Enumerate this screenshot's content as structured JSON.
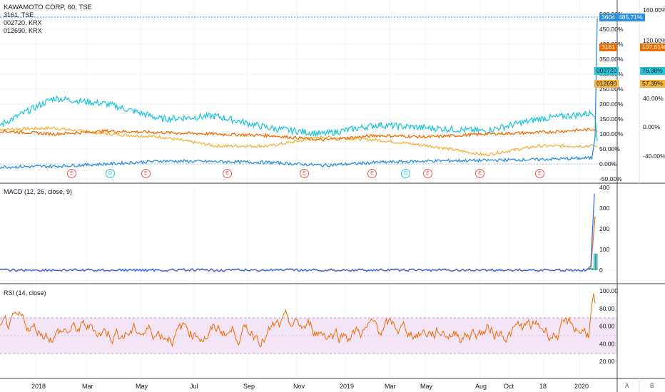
{
  "main_legend": {
    "title": "KAWAMOTO CORP, 60, TSE",
    "symbols": [
      "3161, TSE",
      "002720, KRX",
      "012690, KRX"
    ]
  },
  "colors": {
    "kawamoto": "#2d8ee0",
    "s3161": "#ef6c00",
    "s002720": "#26c6da",
    "s012690": "#f2b33d",
    "macd": "#2962ff",
    "signal": "#ef6c00",
    "hist_up": "#26a69a",
    "hist_dn": "#ef5350",
    "rsi": "#ef6c00",
    "rsi_band": "#f3e5f5",
    "earnings": "#ef5350",
    "dividend": "#26c6da"
  },
  "price_tags": [
    {
      "label": "3604",
      "value": "485.71%",
      "color": "#2d8ee0"
    },
    {
      "label": "3161",
      "value": "107.61%",
      "color": "#ef6c00"
    },
    {
      "label": "002720",
      "value": "76.38%",
      "color": "#26c6da"
    },
    {
      "label": "012690",
      "value": "57.39%",
      "color": "#f2b33d"
    }
  ],
  "macd_legend": "MACD (12, 26, close, 9)",
  "rsi_legend": "RSI (14, close)",
  "axes": {
    "main_right_inner": [
      "500.00%",
      "450.00%",
      "400.00%",
      "350.00%",
      "300.00%",
      "250.00%",
      "200.00%",
      "150.00%",
      "100.00%",
      "50.00%",
      "0.00%",
      "-50.00%"
    ],
    "main_right_outer": [
      "160.00%",
      "120.00%",
      "80.00%",
      "40.00%",
      "0.00%",
      "-40.00%"
    ],
    "macd_right": [
      "400",
      "300",
      "200",
      "100",
      "0"
    ],
    "rsi_right": [
      "100.00",
      "80.00",
      "60.00",
      "40.00",
      "20.00"
    ]
  },
  "x_labels": [
    "2018",
    "Mar",
    "May",
    "Jul",
    "Sep",
    "Nov",
    "2019",
    "Mar",
    "May",
    "Aug",
    "Oct",
    "18",
    "2020"
  ],
  "events": [
    "E",
    "D",
    "E",
    "E",
    "E",
    "E",
    "D",
    "E",
    "E",
    "E"
  ],
  "footer": {
    "left_button": "A",
    "right_button": "B"
  },
  "chart_data": {
    "type": "line",
    "x": [
      "2018",
      "Mar",
      "May",
      "Jul",
      "Sep",
      "Nov",
      "2019",
      "Mar",
      "May",
      "Aug",
      "Oct",
      "18",
      "2020"
    ],
    "series": [
      {
        "name": "3604",
        "values": [
          -10,
          -8,
          0,
          10,
          8,
          5,
          -5,
          5,
          10,
          12,
          15,
          20,
          485.71
        ]
      },
      {
        "name": "3161",
        "values": [
          110,
          100,
          110,
          105,
          100,
          95,
          80,
          95,
          90,
          100,
          105,
          115,
          107.61
        ]
      },
      {
        "name": "002720",
        "values": [
          130,
          220,
          200,
          150,
          160,
          120,
          100,
          130,
          120,
          110,
          150,
          170,
          76.38
        ]
      },
      {
        "name": "012690",
        "values": [
          115,
          120,
          100,
          90,
          60,
          60,
          90,
          80,
          60,
          30,
          60,
          60,
          57.39
        ]
      }
    ],
    "ylim": [
      -50,
      500
    ],
    "macd_ylim": [
      -20,
      400
    ],
    "rsi_ylim": [
      10,
      100
    ]
  }
}
